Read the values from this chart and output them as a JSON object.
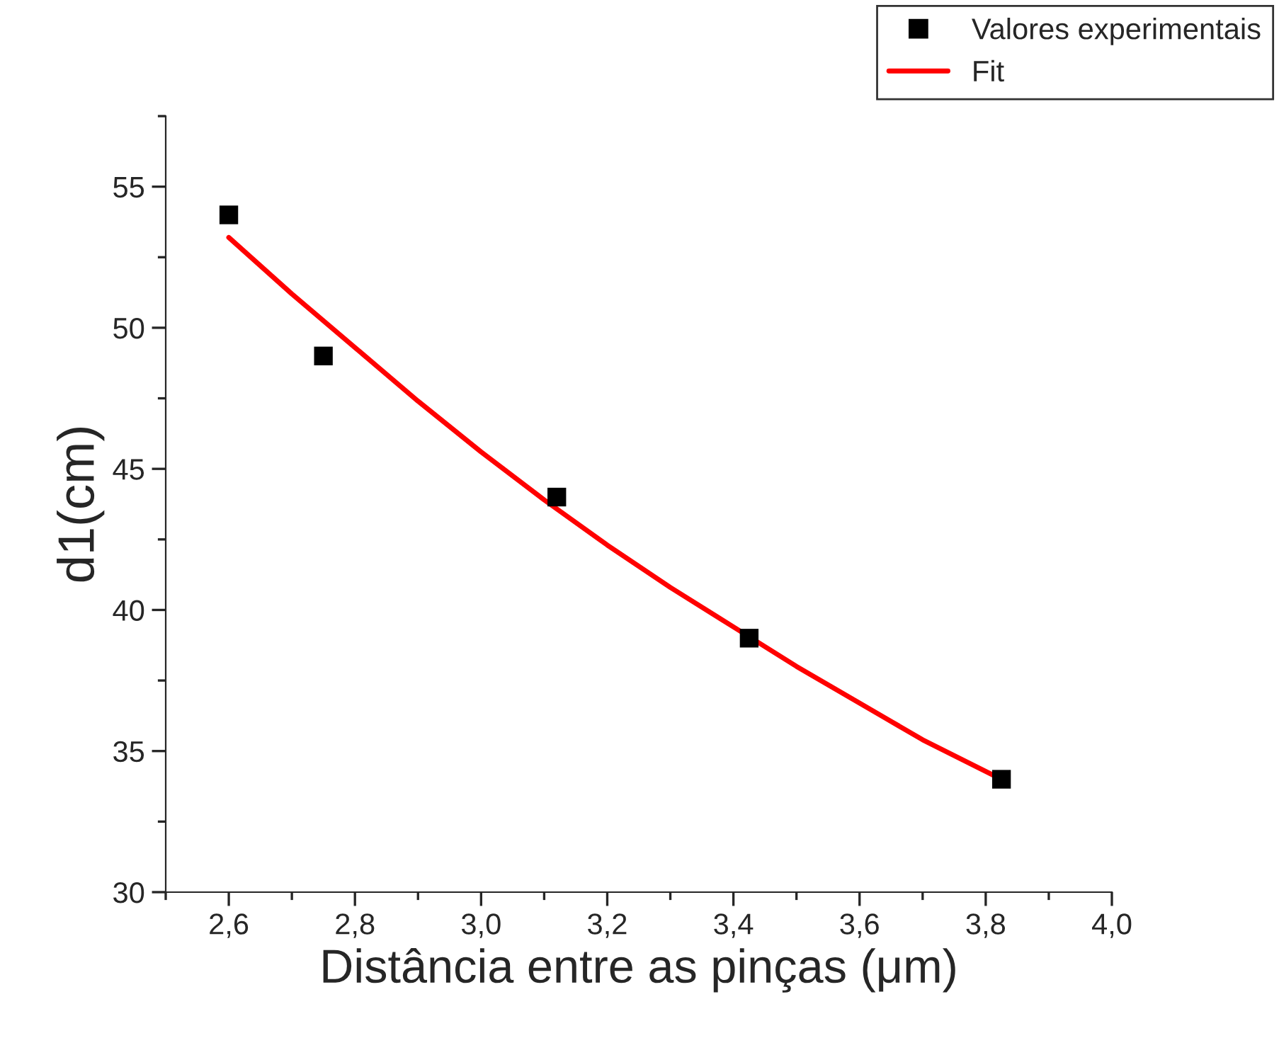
{
  "chart_data": {
    "type": "scatter",
    "xlabel": "Distância entre as pinças (μm)",
    "ylabel": "d1(cm)",
    "xlim": [
      2.5,
      4.0
    ],
    "ylim": [
      30,
      57.5
    ],
    "xticks": [
      {
        "value": 2.6,
        "label": "2,6"
      },
      {
        "value": 2.8,
        "label": "2,8"
      },
      {
        "value": 3.0,
        "label": "3,0"
      },
      {
        "value": 3.2,
        "label": "3,2"
      },
      {
        "value": 3.4,
        "label": "3,4"
      },
      {
        "value": 3.6,
        "label": "3,6"
      },
      {
        "value": 3.8,
        "label": "3,8"
      },
      {
        "value": 4.0,
        "label": "4,0"
      }
    ],
    "yticks": [
      30,
      35,
      40,
      45,
      50,
      55
    ],
    "legend": "top right",
    "grid": false,
    "series": [
      {
        "name": "Valores experimentais",
        "marker": "square",
        "color": "#000000",
        "x": [
          2.6,
          2.75,
          3.12,
          3.425,
          3.825
        ],
        "values": [
          54,
          49,
          44,
          39,
          34
        ]
      },
      {
        "name": "Fit",
        "type": "line",
        "line_style": "solid",
        "color": "#ff0000",
        "x": [
          2.6,
          2.7,
          2.8,
          2.9,
          3.0,
          3.1,
          3.2,
          3.3,
          3.4,
          3.5,
          3.6,
          3.7,
          3.825
        ],
        "values": [
          53.2,
          51.2,
          49.3,
          47.4,
          45.6,
          43.9,
          42.3,
          40.8,
          39.4,
          38.0,
          36.7,
          35.4,
          34.0
        ]
      }
    ]
  }
}
